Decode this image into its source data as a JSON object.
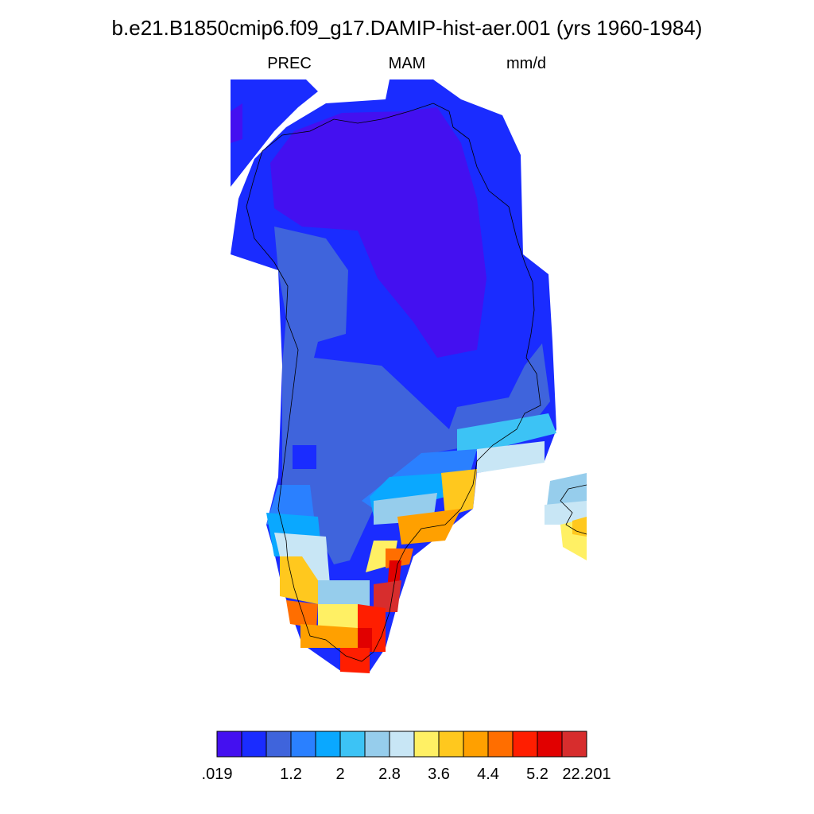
{
  "title": "b.e21.B1850cmip6.f09_g17.DAMIP-hist-aer.001 (yrs 1960-1984)",
  "subtitles": {
    "left": "PREC",
    "center": "MAM",
    "right": "mm/d"
  },
  "colorbar": {
    "colors": [
      "#4410f0",
      "#1a2cff",
      "#3f64dc",
      "#2a80ff",
      "#0aa8ff",
      "#3cc3f5",
      "#96cdec",
      "#c8e6f5",
      "#fff064",
      "#ffc81e",
      "#ffa000",
      "#ff6e00",
      "#ff1e00",
      "#e10000",
      "#d72d2d"
    ],
    "labels": [
      ".019",
      null,
      null,
      "1.2",
      null,
      "2",
      null,
      "2.8",
      null,
      "3.6",
      null,
      "4.4",
      null,
      "5.2",
      null,
      "22.201"
    ]
  }
}
